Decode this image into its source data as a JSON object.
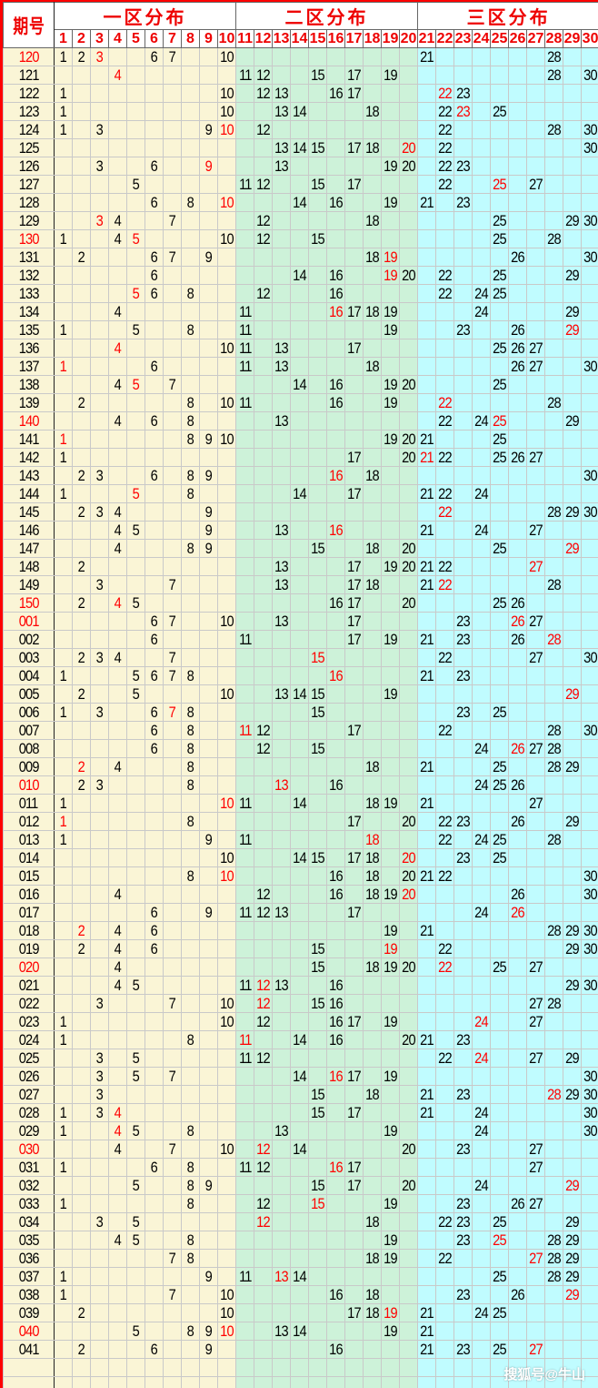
{
  "header": {
    "period_label": "期号",
    "zones": [
      "一区分布",
      "二区分布",
      "三区分布"
    ],
    "columns": [
      1,
      2,
      3,
      4,
      5,
      6,
      7,
      8,
      9,
      10,
      11,
      12,
      13,
      14,
      15,
      16,
      17,
      18,
      19,
      20,
      21,
      22,
      23,
      24,
      25,
      26,
      27,
      28,
      29,
      30
    ]
  },
  "colors": {
    "border_accent": "#ff0000",
    "period_text": "#1b8fb8",
    "highlight": "#ff0000",
    "zone1_bg": "#faf5d6",
    "zone2_bg": "#cdf2d9",
    "zone3_bg": "#c0fcff"
  },
  "rows": [
    {
      "p": "120",
      "pr": true,
      "n": [
        1,
        2,
        3,
        6,
        7,
        10,
        21,
        28
      ],
      "r": [
        3
      ]
    },
    {
      "p": "121",
      "n": [
        4,
        11,
        12,
        15,
        17,
        19,
        28,
        30
      ],
      "r": [
        4
      ]
    },
    {
      "p": "122",
      "n": [
        1,
        10,
        12,
        13,
        16,
        17,
        22,
        23
      ],
      "r": [
        22
      ]
    },
    {
      "p": "123",
      "n": [
        1,
        10,
        13,
        14,
        18,
        22,
        23,
        25
      ],
      "r": [
        23
      ]
    },
    {
      "p": "124",
      "n": [
        1,
        3,
        9,
        10,
        12,
        22,
        28,
        30
      ],
      "r": [
        10
      ]
    },
    {
      "p": "125",
      "n": [
        13,
        14,
        15,
        17,
        18,
        20,
        22,
        30
      ],
      "r": [
        20
      ]
    },
    {
      "p": "126",
      "n": [
        3,
        6,
        9,
        13,
        19,
        20,
        22,
        23
      ],
      "r": [
        9
      ]
    },
    {
      "p": "127",
      "n": [
        5,
        11,
        12,
        15,
        17,
        22,
        25,
        27
      ],
      "r": [
        25
      ]
    },
    {
      "p": "128",
      "n": [
        6,
        8,
        10,
        14,
        16,
        19,
        21,
        23
      ],
      "r": [
        10
      ]
    },
    {
      "p": "129",
      "n": [
        3,
        4,
        7,
        12,
        18,
        25,
        29,
        30
      ],
      "r": [
        3
      ]
    },
    {
      "p": "130",
      "pr": true,
      "n": [
        1,
        4,
        5,
        10,
        12,
        15,
        25,
        28
      ],
      "r": [
        5
      ]
    },
    {
      "p": "131",
      "n": [
        2,
        6,
        7,
        9,
        18,
        19,
        26,
        30
      ],
      "r": [
        19
      ]
    },
    {
      "p": "132",
      "n": [
        6,
        14,
        16,
        19,
        20,
        22,
        25,
        29
      ],
      "r": [
        19
      ]
    },
    {
      "p": "133",
      "n": [
        5,
        6,
        8,
        12,
        16,
        22,
        24,
        25
      ],
      "r": [
        5
      ]
    },
    {
      "p": "134",
      "n": [
        4,
        11,
        16,
        17,
        18,
        19,
        24,
        29
      ],
      "r": [
        16
      ]
    },
    {
      "p": "135",
      "n": [
        1,
        5,
        8,
        11,
        19,
        23,
        26,
        29
      ],
      "r": [
        29
      ]
    },
    {
      "p": "136",
      "n": [
        4,
        10,
        11,
        13,
        17,
        25,
        26,
        27
      ],
      "r": [
        4
      ]
    },
    {
      "p": "137",
      "n": [
        1,
        6,
        11,
        13,
        18,
        26,
        27,
        30
      ],
      "r": [
        1
      ]
    },
    {
      "p": "138",
      "n": [
        4,
        5,
        7,
        14,
        16,
        19,
        20,
        25
      ],
      "r": [
        5
      ]
    },
    {
      "p": "139",
      "n": [
        2,
        8,
        10,
        11,
        16,
        19,
        22,
        28
      ],
      "r": [
        22
      ]
    },
    {
      "p": "140",
      "pr": true,
      "n": [
        4,
        6,
        8,
        13,
        22,
        24,
        25,
        29
      ],
      "r": [
        25
      ]
    },
    {
      "p": "141",
      "n": [
        1,
        8,
        9,
        10,
        19,
        20,
        21,
        25
      ],
      "r": [
        1
      ]
    },
    {
      "p": "142",
      "n": [
        1,
        17,
        20,
        21,
        22,
        25,
        26,
        27
      ],
      "r": [
        21
      ]
    },
    {
      "p": "143",
      "n": [
        2,
        3,
        6,
        8,
        9,
        16,
        18,
        30
      ],
      "r": [
        16
      ]
    },
    {
      "p": "144",
      "n": [
        1,
        5,
        8,
        14,
        17,
        21,
        22,
        24
      ],
      "r": [
        5
      ]
    },
    {
      "p": "145",
      "n": [
        2,
        3,
        4,
        9,
        22,
        28,
        29,
        30
      ],
      "r": [
        22
      ]
    },
    {
      "p": "146",
      "n": [
        4,
        5,
        9,
        13,
        16,
        21,
        24,
        27
      ],
      "r": [
        16
      ]
    },
    {
      "p": "147",
      "n": [
        4,
        8,
        9,
        15,
        18,
        20,
        25,
        29
      ],
      "r": [
        29
      ]
    },
    {
      "p": "148",
      "n": [
        2,
        13,
        17,
        19,
        20,
        21,
        22,
        27
      ],
      "r": [
        27
      ]
    },
    {
      "p": "149",
      "n": [
        3,
        7,
        13,
        17,
        18,
        21,
        22,
        28
      ],
      "r": [
        22
      ]
    },
    {
      "p": "150",
      "pr": true,
      "n": [
        2,
        4,
        5,
        16,
        17,
        20,
        25,
        26
      ],
      "r": [
        4
      ]
    },
    {
      "p": "001",
      "pr": true,
      "n": [
        6,
        7,
        10,
        13,
        17,
        23,
        26,
        27
      ],
      "r": [
        26
      ]
    },
    {
      "p": "002",
      "n": [
        6,
        11,
        17,
        19,
        21,
        23,
        26,
        28
      ],
      "r": [
        28
      ]
    },
    {
      "p": "003",
      "n": [
        2,
        3,
        4,
        7,
        15,
        22,
        27,
        30
      ],
      "r": [
        15
      ]
    },
    {
      "p": "004",
      "n": [
        1,
        5,
        6,
        7,
        8,
        16,
        21,
        23
      ],
      "r": [
        16
      ]
    },
    {
      "p": "005",
      "n": [
        2,
        5,
        10,
        13,
        14,
        15,
        19,
        29
      ],
      "r": [
        29
      ]
    },
    {
      "p": "006",
      "n": [
        1,
        3,
        6,
        7,
        8,
        15,
        23,
        25
      ],
      "r": [
        7
      ]
    },
    {
      "p": "007",
      "n": [
        6,
        8,
        11,
        12,
        17,
        22,
        28,
        30
      ],
      "r": [
        11
      ]
    },
    {
      "p": "008",
      "n": [
        6,
        8,
        12,
        15,
        24,
        26,
        27,
        28
      ],
      "r": [
        26
      ]
    },
    {
      "p": "009",
      "n": [
        2,
        4,
        8,
        18,
        21,
        25,
        28,
        29
      ],
      "r": [
        2
      ]
    },
    {
      "p": "010",
      "pr": true,
      "n": [
        2,
        3,
        8,
        13,
        16,
        24,
        25,
        26
      ],
      "r": [
        13
      ]
    },
    {
      "p": "011",
      "n": [
        1,
        10,
        11,
        14,
        18,
        19,
        21,
        27
      ],
      "r": [
        10
      ]
    },
    {
      "p": "012",
      "n": [
        1,
        8,
        17,
        20,
        22,
        23,
        26,
        29
      ],
      "r": [
        1
      ]
    },
    {
      "p": "013",
      "n": [
        1,
        9,
        11,
        18,
        22,
        24,
        25,
        28
      ],
      "r": [
        18
      ]
    },
    {
      "p": "014",
      "n": [
        10,
        14,
        15,
        17,
        18,
        20,
        23,
        25
      ],
      "r": [
        20
      ]
    },
    {
      "p": "015",
      "n": [
        8,
        10,
        16,
        18,
        20,
        21,
        22,
        30
      ],
      "r": [
        10
      ]
    },
    {
      "p": "016",
      "n": [
        4,
        12,
        16,
        18,
        19,
        20,
        26,
        30
      ],
      "r": [
        20
      ]
    },
    {
      "p": "017",
      "n": [
        6,
        9,
        11,
        12,
        13,
        17,
        24,
        26
      ],
      "r": [
        26
      ]
    },
    {
      "p": "018",
      "n": [
        2,
        4,
        6,
        19,
        21,
        28,
        29,
        30
      ],
      "r": [
        2
      ]
    },
    {
      "p": "019",
      "n": [
        2,
        4,
        6,
        15,
        19,
        22,
        29,
        30
      ],
      "r": [
        19
      ]
    },
    {
      "p": "020",
      "pr": true,
      "n": [
        4,
        15,
        18,
        19,
        20,
        22,
        25,
        27
      ],
      "r": [
        22
      ]
    },
    {
      "p": "021",
      "n": [
        4,
        5,
        11,
        12,
        13,
        16,
        29,
        30
      ],
      "r": [
        12
      ]
    },
    {
      "p": "022",
      "n": [
        3,
        7,
        10,
        12,
        15,
        16,
        27,
        28
      ],
      "r": [
        12
      ]
    },
    {
      "p": "023",
      "n": [
        1,
        10,
        12,
        16,
        17,
        19,
        24,
        27
      ],
      "r": [
        24
      ]
    },
    {
      "p": "024",
      "n": [
        1,
        8,
        11,
        14,
        16,
        20,
        21,
        23
      ],
      "r": [
        11
      ]
    },
    {
      "p": "025",
      "n": [
        3,
        5,
        11,
        12,
        22,
        24,
        27,
        29
      ],
      "r": [
        24
      ]
    },
    {
      "p": "026",
      "n": [
        3,
        5,
        7,
        14,
        16,
        17,
        19,
        30
      ],
      "r": [
        16
      ]
    },
    {
      "p": "027",
      "n": [
        3,
        15,
        18,
        21,
        23,
        28,
        29,
        30
      ],
      "r": [
        28
      ]
    },
    {
      "p": "028",
      "n": [
        1,
        3,
        4,
        15,
        17,
        21,
        24,
        30
      ],
      "r": [
        4
      ]
    },
    {
      "p": "029",
      "n": [
        1,
        4,
        5,
        8,
        13,
        19,
        24,
        30
      ],
      "r": [
        4
      ]
    },
    {
      "p": "030",
      "pr": true,
      "n": [
        4,
        7,
        10,
        12,
        14,
        20,
        23,
        27
      ],
      "r": [
        12
      ]
    },
    {
      "p": "031",
      "n": [
        1,
        6,
        8,
        11,
        12,
        16,
        17,
        27
      ],
      "r": [
        16
      ]
    },
    {
      "p": "032",
      "n": [
        5,
        8,
        9,
        15,
        17,
        20,
        24,
        29
      ],
      "r": [
        29
      ]
    },
    {
      "p": "033",
      "n": [
        1,
        8,
        12,
        15,
        19,
        23,
        26,
        27
      ],
      "r": [
        15
      ]
    },
    {
      "p": "034",
      "n": [
        3,
        5,
        12,
        18,
        22,
        23,
        25,
        29
      ],
      "r": [
        12
      ]
    },
    {
      "p": "035",
      "n": [
        4,
        5,
        8,
        19,
        23,
        25,
        28,
        29
      ],
      "r": [
        25
      ]
    },
    {
      "p": "036",
      "n": [
        7,
        8,
        18,
        19,
        22,
        27,
        28,
        29
      ],
      "r": [
        27
      ]
    },
    {
      "p": "037",
      "n": [
        1,
        9,
        11,
        13,
        14,
        25,
        28,
        29
      ],
      "r": [
        13
      ]
    },
    {
      "p": "038",
      "n": [
        1,
        7,
        10,
        16,
        18,
        23,
        26,
        29
      ],
      "r": [
        29
      ]
    },
    {
      "p": "039",
      "n": [
        2,
        10,
        17,
        18,
        19,
        21,
        24,
        25
      ],
      "r": [
        19
      ]
    },
    {
      "p": "040",
      "pr": true,
      "n": [
        5,
        8,
        9,
        10,
        13,
        14,
        19,
        21
      ],
      "r": [
        10
      ]
    },
    {
      "p": "041",
      "n": [
        2,
        6,
        9,
        16,
        21,
        23,
        25,
        27
      ],
      "r": [
        27
      ]
    }
  ],
  "watermark": "搜狐号@牛山"
}
